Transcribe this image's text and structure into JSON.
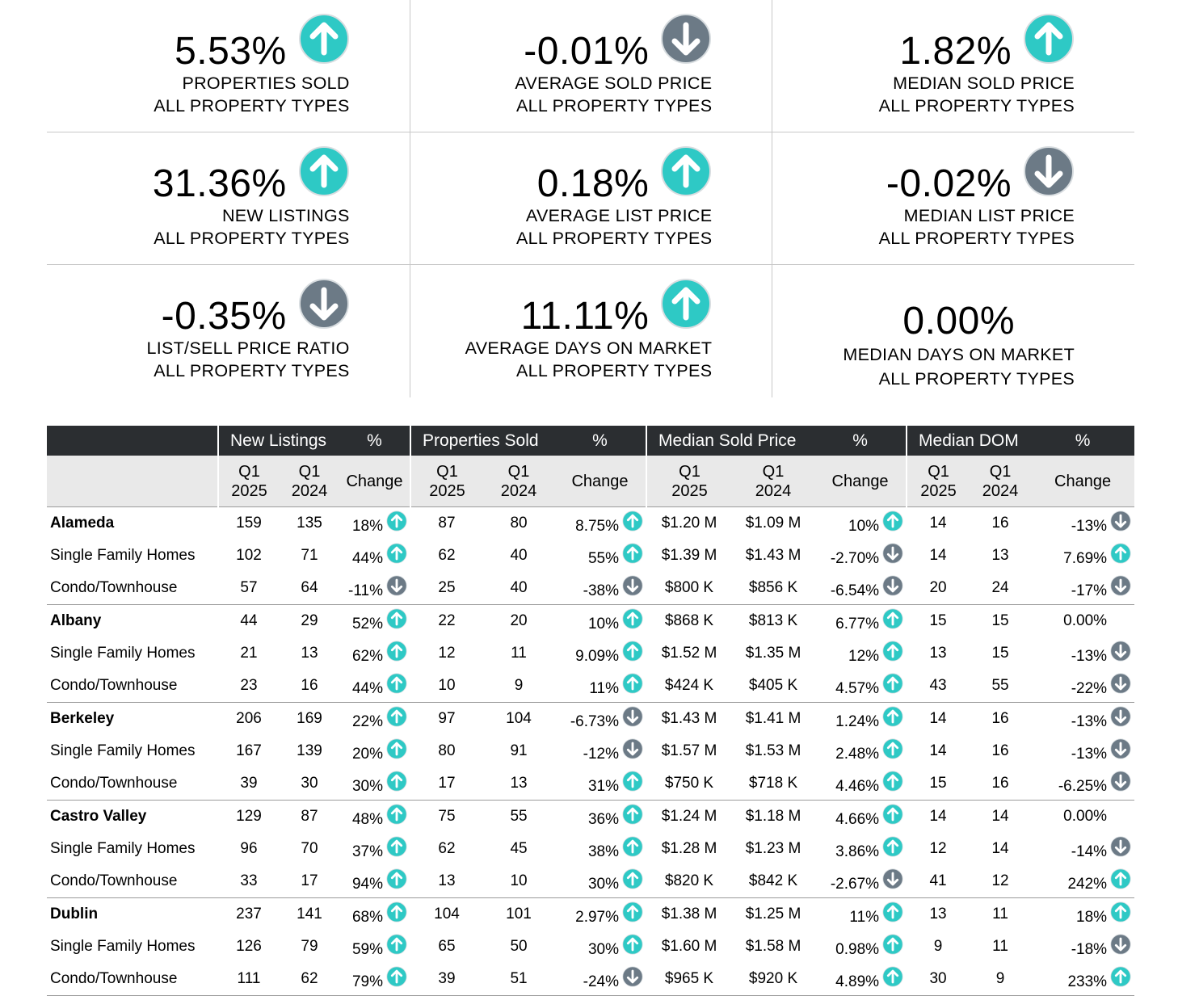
{
  "colors": {
    "up": "#2ec9c5",
    "down": "#6c7a86",
    "header_bg": "#2b2e31",
    "subheader_bg": "#e9e9e9"
  },
  "kpis": [
    [
      {
        "value": "5.53%",
        "label1": "PROPERTIES SOLD",
        "label2": "ALL PROPERTY TYPES",
        "icon": "up-arrow-icon"
      },
      {
        "value": "-0.01%",
        "label1": "AVERAGE SOLD PRICE",
        "label2": "ALL PROPERTY TYPES",
        "icon": "down-arrow-icon"
      },
      {
        "value": "1.82%",
        "label1": "MEDIAN SOLD PRICE",
        "label2": "ALL PROPERTY TYPES",
        "icon": "up-arrow-icon"
      }
    ],
    [
      {
        "value": "31.36%",
        "label1": "NEW LISTINGS",
        "label2": "ALL PROPERTY TYPES",
        "icon": "up-arrow-icon"
      },
      {
        "value": "0.18%",
        "label1": "AVERAGE LIST PRICE",
        "label2": "ALL PROPERTY TYPES",
        "icon": "up-arrow-icon"
      },
      {
        "value": "-0.02%",
        "label1": "MEDIAN LIST PRICE",
        "label2": "ALL PROPERTY TYPES",
        "icon": "down-arrow-icon"
      }
    ],
    [
      {
        "value": "-0.35%",
        "label1": "LIST/SELL PRICE RATIO",
        "label2": "ALL PROPERTY TYPES",
        "icon": "down-arrow-icon"
      },
      {
        "value": "11.11%",
        "label1": "AVERAGE DAYS ON MARKET",
        "label2": "ALL PROPERTY TYPES",
        "icon": "up-arrow-icon"
      },
      {
        "value": "0.00%",
        "label1": "MEDIAN DAYS ON MARKET",
        "label2": "ALL PROPERTY TYPES",
        "icon": ""
      }
    ]
  ],
  "table": {
    "groups": [
      "New Listings",
      "Properties Sold",
      "Median Sold Price",
      "Median DOM"
    ],
    "pct_label": "%",
    "sub": {
      "q1": "Q1",
      "y2025": "2025",
      "y2024": "2024",
      "change": "Change"
    },
    "areas": [
      {
        "name": "Alameda",
        "rows": [
          {
            "label": "Alameda",
            "nl": [
              "159",
              "135",
              "18%",
              "up"
            ],
            "ps": [
              "87",
              "80",
              "8.75%",
              "up"
            ],
            "msp": [
              "$1.20 M",
              "$1.09 M",
              "10%",
              "up"
            ],
            "dom": [
              "14",
              "16",
              "-13%",
              "down"
            ]
          },
          {
            "label": "Single Family Homes",
            "nl": [
              "102",
              "71",
              "44%",
              "up"
            ],
            "ps": [
              "62",
              "40",
              "55%",
              "up"
            ],
            "msp": [
              "$1.39 M",
              "$1.43 M",
              "-2.70%",
              "down"
            ],
            "dom": [
              "14",
              "13",
              "7.69%",
              "up"
            ]
          },
          {
            "label": "Condo/Townhouse",
            "nl": [
              "57",
              "64",
              "-11%",
              "down"
            ],
            "ps": [
              "25",
              "40",
              "-38%",
              "down"
            ],
            "msp": [
              "$800 K",
              "$856 K",
              "-6.54%",
              "down"
            ],
            "dom": [
              "20",
              "24",
              "-17%",
              "down"
            ]
          }
        ]
      },
      {
        "name": "Albany",
        "rows": [
          {
            "label": "Albany",
            "nl": [
              "44",
              "29",
              "52%",
              "up"
            ],
            "ps": [
              "22",
              "20",
              "10%",
              "up"
            ],
            "msp": [
              "$868 K",
              "$813 K",
              "6.77%",
              "up"
            ],
            "dom": [
              "15",
              "15",
              "0.00%",
              ""
            ]
          },
          {
            "label": "Single Family Homes",
            "nl": [
              "21",
              "13",
              "62%",
              "up"
            ],
            "ps": [
              "12",
              "11",
              "9.09%",
              "up"
            ],
            "msp": [
              "$1.52 M",
              "$1.35 M",
              "12%",
              "up"
            ],
            "dom": [
              "13",
              "15",
              "-13%",
              "down"
            ]
          },
          {
            "label": "Condo/Townhouse",
            "nl": [
              "23",
              "16",
              "44%",
              "up"
            ],
            "ps": [
              "10",
              "9",
              "11%",
              "up"
            ],
            "msp": [
              "$424 K",
              "$405 K",
              "4.57%",
              "up"
            ],
            "dom": [
              "43",
              "55",
              "-22%",
              "down"
            ]
          }
        ]
      },
      {
        "name": "Berkeley",
        "rows": [
          {
            "label": "Berkeley",
            "nl": [
              "206",
              "169",
              "22%",
              "up"
            ],
            "ps": [
              "97",
              "104",
              "-6.73%",
              "down"
            ],
            "msp": [
              "$1.43 M",
              "$1.41 M",
              "1.24%",
              "up"
            ],
            "dom": [
              "14",
              "16",
              "-13%",
              "down"
            ]
          },
          {
            "label": "Single Family Homes",
            "nl": [
              "167",
              "139",
              "20%",
              "up"
            ],
            "ps": [
              "80",
              "91",
              "-12%",
              "down"
            ],
            "msp": [
              "$1.57 M",
              "$1.53 M",
              "2.48%",
              "up"
            ],
            "dom": [
              "14",
              "16",
              "-13%",
              "down"
            ]
          },
          {
            "label": "Condo/Townhouse",
            "nl": [
              "39",
              "30",
              "30%",
              "up"
            ],
            "ps": [
              "17",
              "13",
              "31%",
              "up"
            ],
            "msp": [
              "$750 K",
              "$718 K",
              "4.46%",
              "up"
            ],
            "dom": [
              "15",
              "16",
              "-6.25%",
              "down"
            ]
          }
        ]
      },
      {
        "name": "Castro Valley",
        "rows": [
          {
            "label": "Castro Valley",
            "nl": [
              "129",
              "87",
              "48%",
              "up"
            ],
            "ps": [
              "75",
              "55",
              "36%",
              "up"
            ],
            "msp": [
              "$1.24 M",
              "$1.18 M",
              "4.66%",
              "up"
            ],
            "dom": [
              "14",
              "14",
              "0.00%",
              ""
            ]
          },
          {
            "label": "Single Family Homes",
            "nl": [
              "96",
              "70",
              "37%",
              "up"
            ],
            "ps": [
              "62",
              "45",
              "38%",
              "up"
            ],
            "msp": [
              "$1.28 M",
              "$1.23 M",
              "3.86%",
              "up"
            ],
            "dom": [
              "12",
              "14",
              "-14%",
              "down"
            ]
          },
          {
            "label": "Condo/Townhouse",
            "nl": [
              "33",
              "17",
              "94%",
              "up"
            ],
            "ps": [
              "13",
              "10",
              "30%",
              "up"
            ],
            "msp": [
              "$820 K",
              "$842 K",
              "-2.67%",
              "down"
            ],
            "dom": [
              "41",
              "12",
              "242%",
              "up"
            ]
          }
        ]
      },
      {
        "name": "Dublin",
        "rows": [
          {
            "label": "Dublin",
            "nl": [
              "237",
              "141",
              "68%",
              "up"
            ],
            "ps": [
              "104",
              "101",
              "2.97%",
              "up"
            ],
            "msp": [
              "$1.38 M",
              "$1.25 M",
              "11%",
              "up"
            ],
            "dom": [
              "13",
              "11",
              "18%",
              "up"
            ]
          },
          {
            "label": "Single Family Homes",
            "nl": [
              "126",
              "79",
              "59%",
              "up"
            ],
            "ps": [
              "65",
              "50",
              "30%",
              "up"
            ],
            "msp": [
              "$1.60 M",
              "$1.58 M",
              "0.98%",
              "up"
            ],
            "dom": [
              "9",
              "11",
              "-18%",
              "down"
            ]
          },
          {
            "label": "Condo/Townhouse",
            "nl": [
              "111",
              "62",
              "79%",
              "up"
            ],
            "ps": [
              "39",
              "51",
              "-24%",
              "down"
            ],
            "msp": [
              "$965 K",
              "$920 K",
              "4.89%",
              "up"
            ],
            "dom": [
              "30",
              "9",
              "233%",
              "up"
            ]
          }
        ]
      }
    ]
  }
}
